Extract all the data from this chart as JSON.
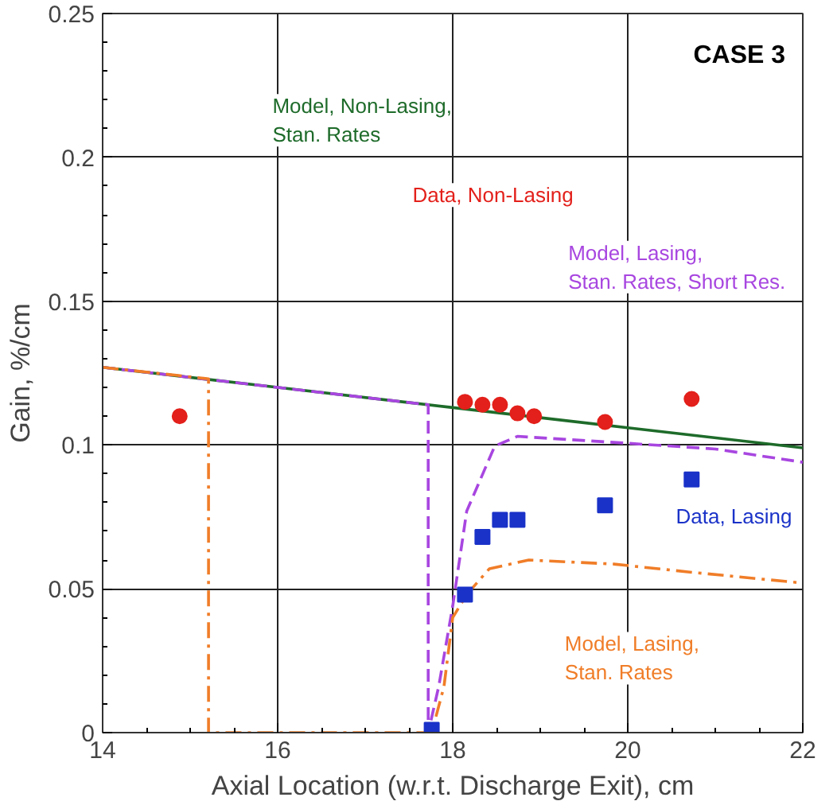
{
  "chart_data": {
    "type": "line",
    "xlabel": "Axial Location (w.r.t. Discharge Exit), cm",
    "ylabel": "Gain, %/cm",
    "xlim": [
      14,
      22
    ],
    "xticks": [
      14,
      16,
      18,
      20,
      22
    ],
    "ylim": [
      0,
      0.25
    ],
    "yticks": [
      0,
      0.05,
      0.1,
      0.15,
      0.2,
      0.25
    ],
    "grid": true,
    "series": [
      {
        "line_style": "solid",
        "color": "#1e6b2a",
        "x": [
          14,
          16,
          18,
          20,
          22
        ],
        "values": [
          0.127,
          0.12,
          0.113,
          0.106,
          0.099
        ]
      },
      {
        "line_style": "dashed",
        "color": "#a846e0",
        "x": [
          14,
          16,
          17.72,
          17.72,
          17.84,
          18.0,
          18.16,
          18.48,
          18.74,
          20,
          21,
          22
        ],
        "values": [
          0.127,
          0.12,
          0.114,
          0,
          0.016,
          0.044,
          0.077,
          0.0996,
          0.103,
          0.1006,
          0.0986,
          0.094
        ]
      },
      {
        "line_style": "dashdot",
        "color": "#f07d28",
        "x": [
          14,
          15.21,
          15.21,
          17.76,
          17.9,
          18.0,
          18.16,
          18.42,
          18.87,
          19.84,
          20.71,
          22
        ],
        "values": [
          0.127,
          0.123,
          0,
          0,
          0.016,
          0.04,
          0.048,
          0.057,
          0.06,
          0.0586,
          0.0558,
          0.052
        ]
      },
      {
        "type": "scatter",
        "marker": "circle",
        "color": "#e3201b",
        "x": [
          14.88,
          18.14,
          18.34,
          18.54,
          18.74,
          18.93,
          19.74,
          20.73
        ],
        "values": [
          0.11,
          0.115,
          0.114,
          0.114,
          0.111,
          0.11,
          0.108,
          0.116
        ]
      },
      {
        "type": "scatter",
        "marker": "square",
        "color": "#1a32c8",
        "x": [
          17.76,
          18.14,
          18.34,
          18.54,
          18.74,
          19.74,
          20.73
        ],
        "values": [
          0.001,
          0.048,
          0.068,
          0.074,
          0.074,
          0.079,
          0.088
        ]
      }
    ],
    "annotations": [
      "CASE 3",
      "Model, Non-Lasing,\nStan. Rates",
      "Data, Non-Lasing",
      "Model, Lasing,\nStan. Rates, Short Res.",
      "Data, Lasing",
      "Model, Lasing,\nStan. Rates"
    ]
  }
}
